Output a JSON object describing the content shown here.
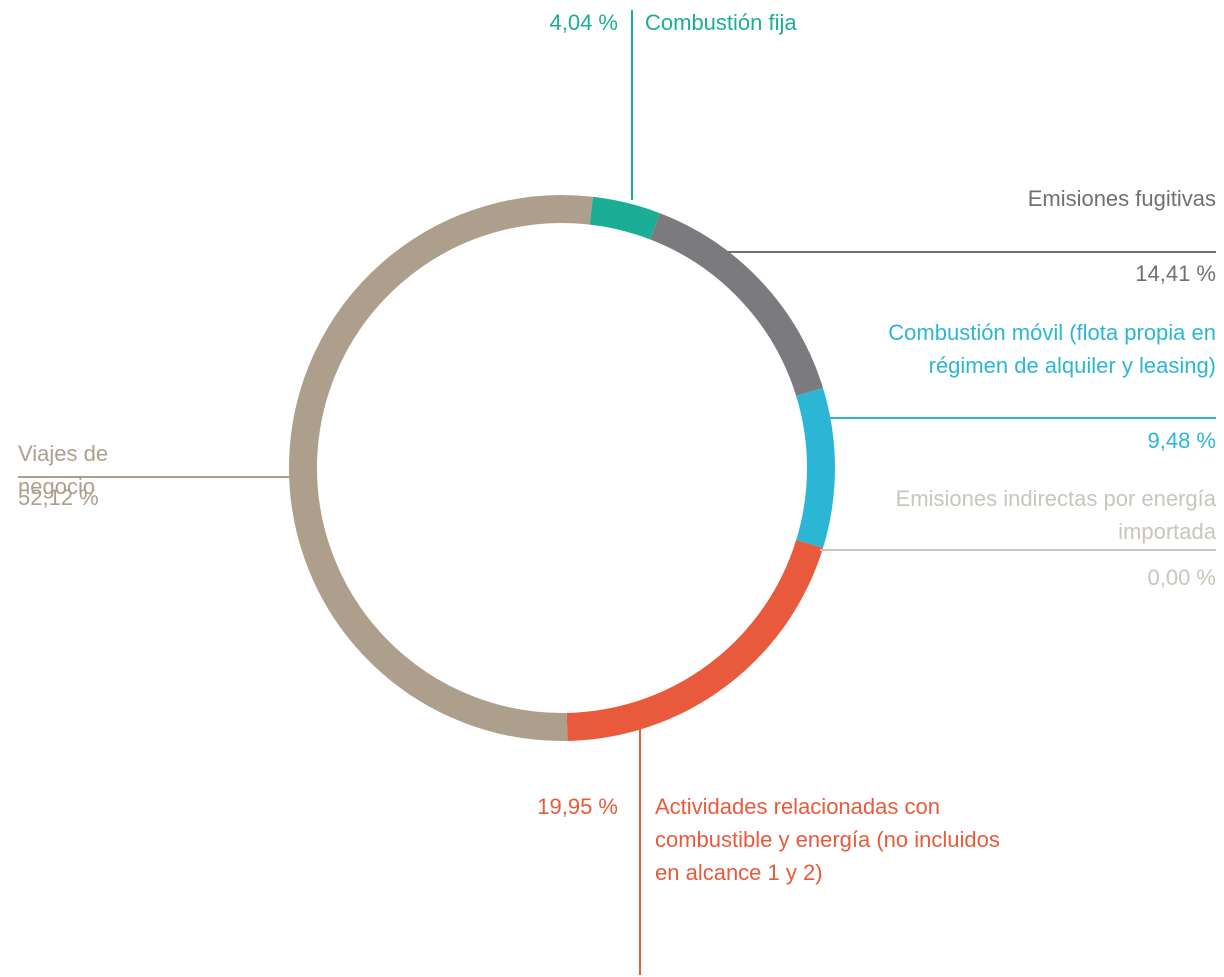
{
  "chart_data": {
    "type": "donut",
    "categories": [
      "Combustión fija",
      "Emisiones fugitivas",
      "Combustión móvil (flota propia en régimen de alquiler y leasing)",
      "Emisiones indirectas por energía importada",
      "Actividades relacionadas con combustible y energía (no incluidos en alcance 1 y 2)",
      "Viajes de negocio"
    ],
    "values": [
      4.04,
      14.41,
      9.48,
      0.0,
      19.95,
      52.12
    ],
    "value_labels": [
      "4,04 %",
      "14,41 %",
      "9,48 %",
      "0,00 %",
      "19,95 %",
      "52,12 %"
    ],
    "colors": [
      "#1aae97",
      "#7b7b7f",
      "#2cb6d6",
      "#cbc6bd",
      "#e85a3b",
      "#ad9f8b"
    ]
  }
}
